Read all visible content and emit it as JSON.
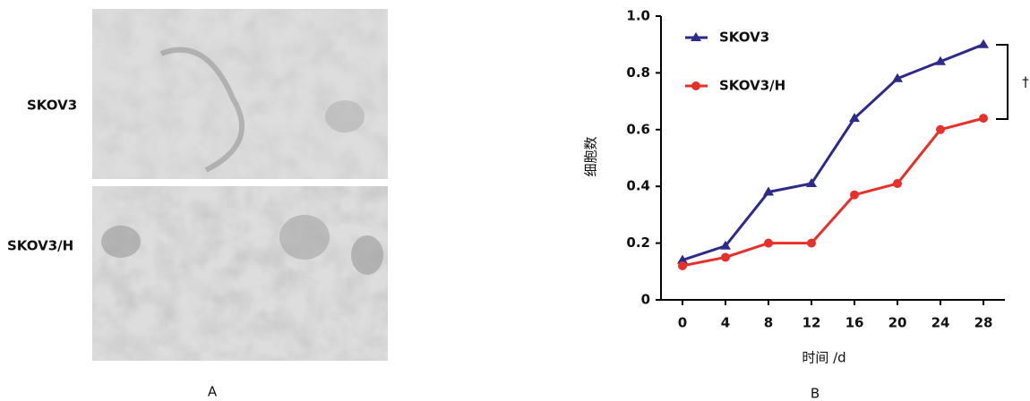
{
  "figure": {
    "panel_a": "A",
    "panel_b": "B",
    "row_labels": [
      "SKOV3",
      "SKOV3/H"
    ]
  },
  "chart_data": {
    "type": "line",
    "y_label": "细胞数",
    "x_label": "时间 /d",
    "annotation": "†",
    "x": [
      0,
      4,
      8,
      12,
      16,
      20,
      24,
      28
    ],
    "xlim": [
      -2,
      30
    ],
    "xticks": [
      0,
      4,
      8,
      12,
      16,
      20,
      24,
      28
    ],
    "ylim": [
      0,
      1
    ],
    "yticks": [
      0,
      0.2,
      0.4,
      0.6,
      0.8,
      {
        "value": 1,
        "label": "1.0"
      }
    ],
    "legend": "upper left",
    "series": [
      {
        "name": "SKOV3",
        "color": "#2e2a8a",
        "marker": "triangle",
        "values": [
          0.14,
          0.19,
          0.38,
          0.41,
          0.64,
          0.78,
          0.84,
          0.9
        ]
      },
      {
        "name": "SKOV3/H",
        "color": "#e8302b",
        "marker": "circle",
        "values": [
          0.12,
          0.15,
          0.2,
          0.2,
          0.37,
          0.41,
          0.6,
          0.64
        ]
      }
    ]
  }
}
